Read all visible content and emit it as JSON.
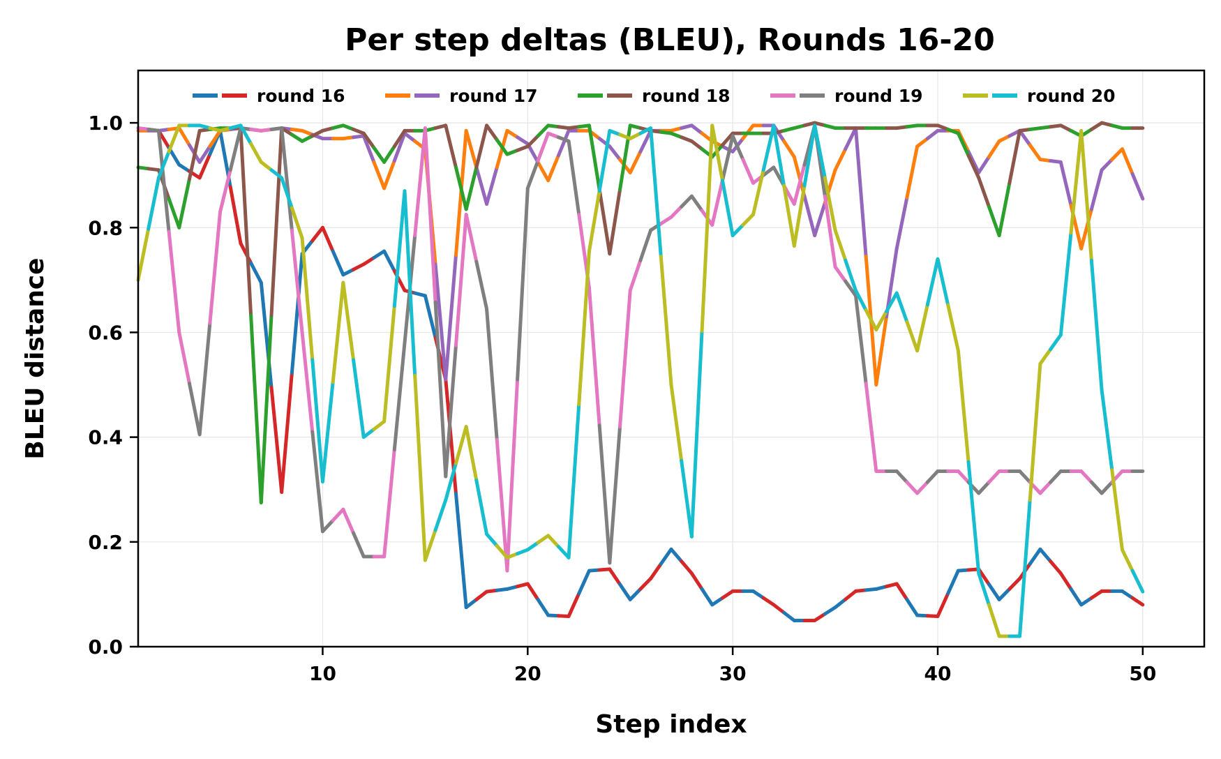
{
  "chart_data": {
    "type": "line",
    "title": "Per step deltas (BLEU), Rounds 16-20",
    "xlabel": "Step index",
    "ylabel": "BLEU distance",
    "xlim": [
      1,
      53
    ],
    "ylim": [
      0.0,
      1.1
    ],
    "xticks": [
      10,
      20,
      30,
      40,
      50
    ],
    "xtick_labels": [
      "10",
      "20",
      "30",
      "40",
      "50"
    ],
    "yticks": [
      0.0,
      0.2,
      0.4,
      0.6,
      0.8,
      1.0
    ],
    "ytick_labels": [
      "0.0",
      "0.2",
      "0.4",
      "0.6",
      "0.8",
      "1.0"
    ],
    "grid": true,
    "legend_position": "upper center (inside, single row)",
    "x": [
      1,
      2,
      3,
      4,
      5,
      6,
      7,
      8,
      9,
      10,
      11,
      12,
      13,
      14,
      15,
      16,
      17,
      18,
      19,
      20,
      21,
      22,
      23,
      24,
      25,
      26,
      27,
      28,
      29,
      30,
      31,
      32,
      33,
      34,
      35,
      36,
      37,
      38,
      39,
      40,
      41,
      42,
      43,
      44,
      45,
      46,
      47,
      48,
      49,
      50
    ],
    "series": [
      {
        "name": "round 16",
        "colors": [
          "#1f77b4",
          "#d62728"
        ],
        "values": [
          0.99,
          0.985,
          0.92,
          0.895,
          0.985,
          0.77,
          0.695,
          0.295,
          0.75,
          0.8,
          0.71,
          0.73,
          0.755,
          0.68,
          0.67,
          0.51,
          0.075,
          0.105,
          0.11,
          0.12,
          0.06,
          0.058,
          0.145,
          0.148,
          0.09,
          0.13,
          0.186,
          0.14,
          0.08,
          0.106,
          0.106,
          0.08,
          0.05,
          0.05,
          0.075,
          0.106,
          0.11,
          0.12,
          0.06,
          0.058,
          0.145,
          0.148,
          0.09,
          0.13,
          0.186,
          0.14,
          0.08,
          0.106,
          0.106,
          0.08
        ]
      },
      {
        "name": "round 17",
        "colors": [
          "#ff7f0e",
          "#9467bd"
        ],
        "values": [
          0.985,
          0.985,
          0.99,
          0.925,
          0.985,
          0.99,
          0.985,
          0.99,
          0.985,
          0.97,
          0.97,
          0.975,
          0.875,
          0.98,
          0.95,
          0.51,
          0.985,
          0.845,
          0.985,
          0.96,
          0.89,
          0.985,
          0.985,
          0.955,
          0.905,
          0.985,
          0.985,
          0.995,
          0.965,
          0.945,
          0.995,
          0.995,
          0.935,
          0.785,
          0.91,
          0.99,
          0.5,
          0.76,
          0.955,
          0.985,
          0.985,
          0.905,
          0.965,
          0.985,
          0.93,
          0.925,
          0.76,
          0.91,
          0.95,
          0.855
        ]
      },
      {
        "name": "round 18",
        "colors": [
          "#2ca02c",
          "#8c564b"
        ],
        "values": [
          0.915,
          0.91,
          0.8,
          0.985,
          0.99,
          0.99,
          0.275,
          0.99,
          0.965,
          0.985,
          0.995,
          0.98,
          0.925,
          0.985,
          0.985,
          0.995,
          0.835,
          0.995,
          0.94,
          0.955,
          0.995,
          0.99,
          0.995,
          0.75,
          0.995,
          0.985,
          0.98,
          0.965,
          0.935,
          0.98,
          0.98,
          0.98,
          0.99,
          1.0,
          0.99,
          0.99,
          0.99,
          0.99,
          0.995,
          0.995,
          0.98,
          0.895,
          0.785,
          0.985,
          0.99,
          0.995,
          0.975,
          1.0,
          0.99,
          0.99
        ]
      },
      {
        "name": "round 19",
        "colors": [
          "#e377c2",
          "#7f7f7f"
        ],
        "values": [
          0.99,
          0.985,
          0.6,
          0.405,
          0.83,
          0.99,
          0.985,
          0.99,
          0.6,
          0.22,
          0.262,
          0.172,
          0.172,
          0.58,
          0.99,
          0.325,
          0.825,
          0.645,
          0.145,
          0.875,
          0.98,
          0.965,
          0.685,
          0.16,
          0.68,
          0.795,
          0.82,
          0.86,
          0.805,
          0.975,
          0.885,
          0.915,
          0.845,
          0.995,
          0.725,
          0.67,
          0.335,
          0.335,
          0.293,
          0.335,
          0.335,
          0.293,
          0.335,
          0.335,
          0.293,
          0.335,
          0.335,
          0.293,
          0.335,
          0.335
        ]
      },
      {
        "name": "round 20",
        "colors": [
          "#bcbd22",
          "#17becf"
        ],
        "values": [
          0.7,
          0.895,
          0.995,
          0.995,
          0.985,
          0.995,
          0.925,
          0.895,
          0.78,
          0.315,
          0.695,
          0.4,
          0.43,
          0.87,
          0.165,
          0.28,
          0.42,
          0.215,
          0.17,
          0.185,
          0.212,
          0.17,
          0.755,
          0.985,
          0.97,
          0.99,
          0.5,
          0.21,
          0.995,
          0.785,
          0.825,
          0.995,
          0.765,
          0.995,
          0.795,
          0.68,
          0.605,
          0.675,
          0.565,
          0.74,
          0.565,
          0.14,
          0.02,
          0.02,
          0.54,
          0.595,
          0.985,
          0.49,
          0.185,
          0.105
        ]
      }
    ]
  }
}
